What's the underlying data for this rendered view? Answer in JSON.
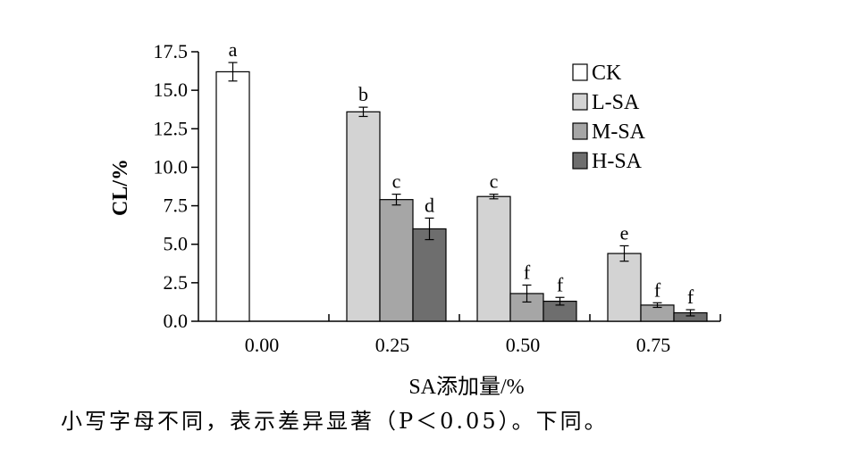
{
  "chart_data": {
    "type": "bar",
    "categories": [
      "0.00",
      "0.25",
      "0.50",
      "0.75"
    ],
    "xlabel": "SA添加量/%",
    "ylabel": "CL/%",
    "ylim": [
      0,
      17.5
    ],
    "yticks": [
      "0.0",
      "2.5",
      "5.0",
      "7.5",
      "10.0",
      "12.5",
      "15.0",
      "17.5"
    ],
    "legend_position": "top-right",
    "grid": false,
    "series": [
      {
        "name": "CK",
        "color": "#ffffff",
        "values": [
          16.2,
          null,
          null,
          null
        ],
        "errors": [
          0.6,
          null,
          null,
          null
        ],
        "labels": [
          "a",
          null,
          null,
          null
        ]
      },
      {
        "name": "L-SA",
        "color": "#d3d3d3",
        "values": [
          null,
          13.6,
          8.1,
          4.4
        ],
        "errors": [
          null,
          0.3,
          0.15,
          0.5
        ],
        "labels": [
          null,
          "b",
          "c",
          "e"
        ]
      },
      {
        "name": "M-SA",
        "color": "#a6a6a6",
        "values": [
          null,
          7.9,
          1.8,
          1.05
        ],
        "errors": [
          null,
          0.35,
          0.55,
          0.15
        ],
        "labels": [
          null,
          "c",
          "f",
          "f"
        ]
      },
      {
        "name": "H-SA",
        "color": "#6e6e6e",
        "values": [
          null,
          6.0,
          1.3,
          0.55
        ],
        "errors": [
          null,
          0.7,
          0.25,
          0.2
        ],
        "labels": [
          null,
          "d",
          "f",
          "f"
        ]
      }
    ]
  },
  "caption": "小写字母不同，表示差异显著（P＜0.05）。下同。"
}
